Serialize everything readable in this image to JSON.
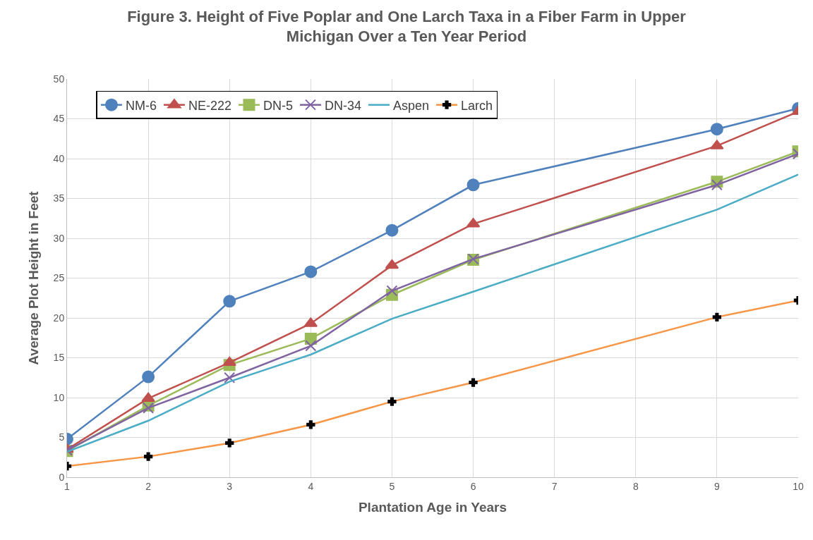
{
  "chart_data": {
    "type": "line",
    "title": "Figure 3. Height of Five Poplar and One Larch Taxa in a Fiber Farm in Upper\nMichigan Over a Ten Year Period",
    "xlabel": "Plantation Age in Years",
    "ylabel": "Average Plot Height in Feet",
    "x": [
      1,
      2,
      3,
      4,
      5,
      6,
      9,
      10
    ],
    "series": [
      {
        "name": "NM-6",
        "color": "#4f81bd",
        "marker": "circle",
        "values": [
          4.8,
          12.6,
          22.1,
          25.8,
          31.0,
          36.7,
          43.7,
          46.3
        ]
      },
      {
        "name": "NE-222",
        "color": "#c0504d",
        "marker": "triangle",
        "values": [
          3.5,
          9.9,
          14.4,
          19.3,
          26.6,
          31.8,
          41.6,
          45.9
        ]
      },
      {
        "name": "DN-5",
        "color": "#9bbb59",
        "marker": "square",
        "values": [
          3.3,
          9.0,
          14.1,
          17.4,
          22.9,
          27.3,
          37.1,
          40.9
        ]
      },
      {
        "name": "DN-34",
        "color": "#8064a2",
        "marker": "x",
        "values": [
          3.4,
          8.7,
          12.5,
          16.5,
          23.4,
          27.4,
          36.7,
          40.6
        ]
      },
      {
        "name": "Aspen",
        "color": "#4bacc6",
        "marker": "none",
        "values": [
          3.2,
          7.1,
          12.0,
          15.4,
          19.9,
          23.3,
          33.6,
          38.0
        ]
      },
      {
        "name": "Larch",
        "color": "#f79646",
        "marker": "cross",
        "colors": [
          "#000000",
          "#000000",
          "#000000",
          "#000000",
          "#000000",
          "#000000",
          "#000000",
          "#000000"
        ],
        "values": [
          1.4,
          2.6,
          4.3,
          6.6,
          9.5,
          11.9,
          20.1,
          22.2
        ]
      }
    ],
    "xlim": [
      1,
      10
    ],
    "xticks": [
      1,
      2,
      3,
      4,
      5,
      6,
      7,
      8,
      9,
      10
    ],
    "ylim": [
      0,
      50
    ],
    "yticks": [
      0,
      5,
      10,
      15,
      20,
      25,
      30,
      35,
      40,
      45,
      50
    ],
    "grid": true,
    "legend": "top left",
    "line_style": "solid"
  }
}
